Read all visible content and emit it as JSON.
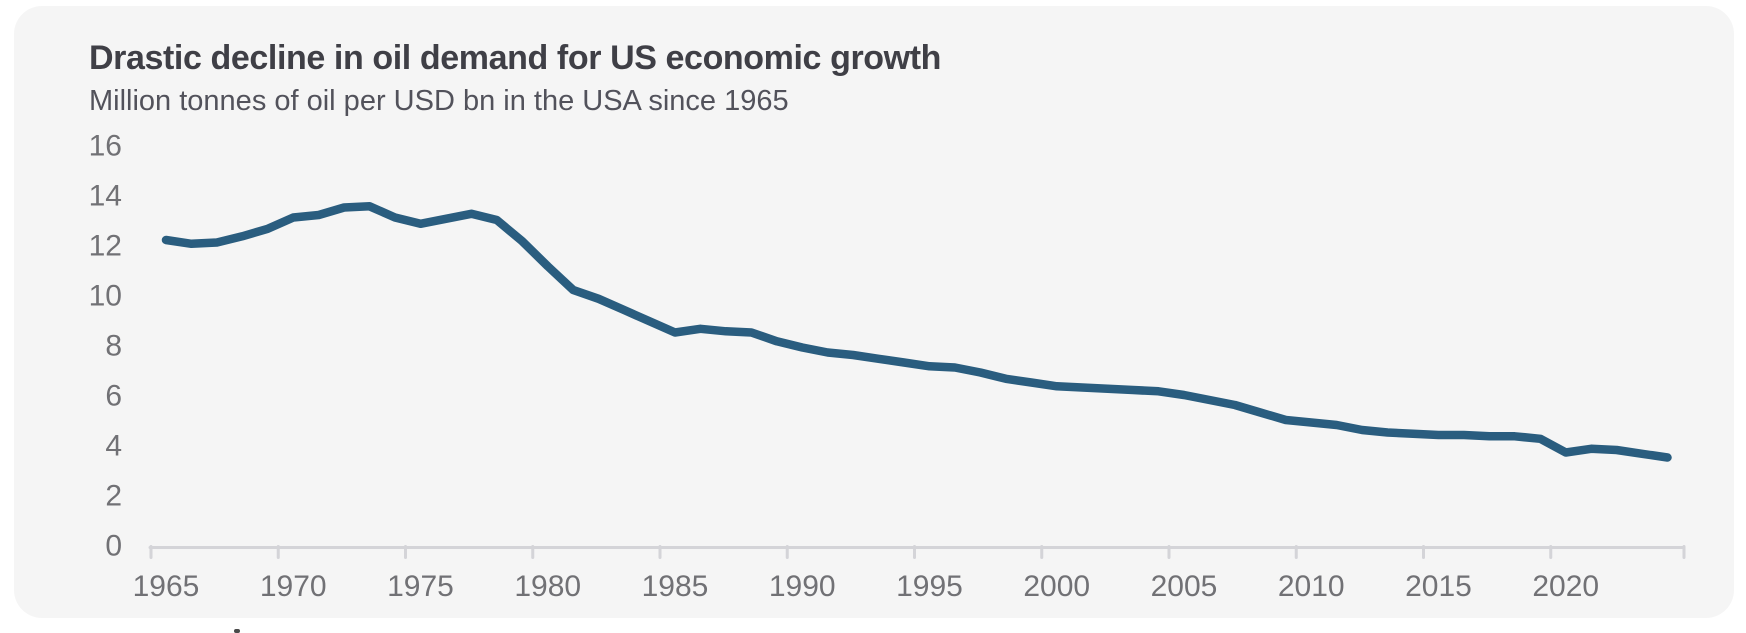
{
  "header": {
    "title": "Drastic decline in oil demand for US economic growth",
    "subtitle": "Million tonnes of oil per USD bn in the USA since 1965"
  },
  "colors": {
    "page_background": "#ffffff",
    "card_background": "#f5f5f5",
    "title_text": "#3f3f46",
    "subtitle_text": "#52525b",
    "tick_label_text": "#717175",
    "axis": "#d4d4d8",
    "line": "#2a5d7f"
  },
  "chart_data": {
    "type": "line",
    "title": "Drastic decline in oil demand for US economic growth",
    "subtitle": "Million tonnes of oil per USD bn in the USA since 1965",
    "xlabel": "",
    "ylabel": "Million tonnes of oil per USD bn",
    "grid": false,
    "legend_position": "none",
    "ylim": [
      0,
      16
    ],
    "xlim": [
      1964.4,
      2025.3
    ],
    "y_ticks": [
      0,
      2,
      4,
      6,
      8,
      10,
      12,
      14,
      16
    ],
    "x_ticks": [
      1965,
      1970,
      1975,
      1980,
      1985,
      1990,
      1995,
      2000,
      2005,
      2010,
      2015,
      2020
    ],
    "x": [
      1965,
      1966,
      1967,
      1968,
      1969,
      1970,
      1971,
      1972,
      1973,
      1974,
      1975,
      1976,
      1977,
      1978,
      1979,
      1980,
      1981,
      1982,
      1983,
      1984,
      1985,
      1986,
      1987,
      1988,
      1989,
      1990,
      1991,
      1992,
      1993,
      1994,
      1995,
      1996,
      1997,
      1998,
      1999,
      2000,
      2001,
      2002,
      2003,
      2004,
      2005,
      2006,
      2007,
      2008,
      2009,
      2010,
      2011,
      2012,
      2013,
      2014,
      2015,
      2016,
      2017,
      2018,
      2019,
      2020,
      2021,
      2022,
      2023,
      2024
    ],
    "values": [
      12.2,
      12.05,
      12.1,
      12.35,
      12.65,
      13.1,
      13.2,
      13.5,
      13.55,
      13.1,
      12.85,
      13.05,
      13.25,
      13.0,
      12.15,
      11.15,
      10.2,
      9.85,
      9.4,
      8.95,
      8.5,
      8.65,
      8.55,
      8.5,
      8.15,
      7.9,
      7.7,
      7.6,
      7.45,
      7.3,
      7.15,
      7.1,
      6.9,
      6.65,
      6.5,
      6.35,
      6.3,
      6.25,
      6.2,
      6.15,
      6.0,
      5.8,
      5.6,
      5.3,
      5.0,
      4.9,
      4.8,
      4.6,
      4.5,
      4.45,
      4.4,
      4.4,
      4.35,
      4.35,
      4.25,
      3.7,
      3.85,
      3.8,
      3.65,
      3.5
    ]
  }
}
